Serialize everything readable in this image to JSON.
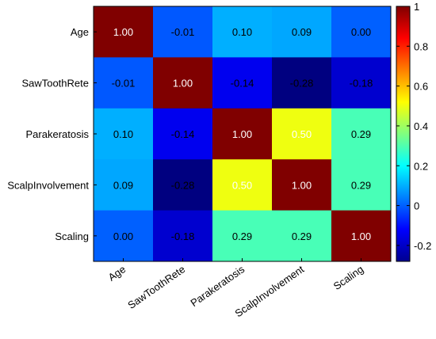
{
  "chart_data": {
    "type": "heatmap",
    "title": "",
    "xlabel": "",
    "ylabel": "",
    "row_labels": [
      "Age",
      "SawToothRete",
      "Parakeratosis",
      "ScalpInvolvement",
      "Scaling"
    ],
    "col_labels": [
      "Age",
      "SawToothRete",
      "Parakeratosis",
      "ScalpInvolvement",
      "Scaling"
    ],
    "values": [
      [
        1.0,
        -0.01,
        0.1,
        0.09,
        0.0
      ],
      [
        -0.01,
        1.0,
        -0.14,
        -0.28,
        -0.18
      ],
      [
        0.1,
        -0.14,
        1.0,
        0.5,
        0.29
      ],
      [
        0.09,
        -0.28,
        0.5,
        1.0,
        0.29
      ],
      [
        0.0,
        -0.18,
        0.29,
        0.29,
        1.0
      ]
    ],
    "cell_labels": [
      [
        "1.00",
        "-0.01",
        "0.10",
        "0.09",
        "0.00"
      ],
      [
        "-0.01",
        "1.00",
        "-0.14",
        "-0.28",
        "-0.18"
      ],
      [
        "0.10",
        "-0.14",
        "1.00",
        "0.50",
        "0.29"
      ],
      [
        "0.09",
        "-0.28",
        "0.50",
        "1.00",
        "0.29"
      ],
      [
        "0.00",
        "-0.18",
        "0.29",
        "0.29",
        "1.00"
      ]
    ],
    "colormap": "jet",
    "color_range": [
      -0.28,
      1.0
    ],
    "colorbar_ticks": [
      1,
      0.8,
      0.6,
      0.4,
      0.2,
      0,
      -0.2
    ],
    "colorbar_tick_labels": [
      "1",
      "0.8",
      "0.6",
      "0.4",
      "0.2",
      "0",
      "-0.2"
    ],
    "legend": "colorbar right",
    "grid": false
  }
}
